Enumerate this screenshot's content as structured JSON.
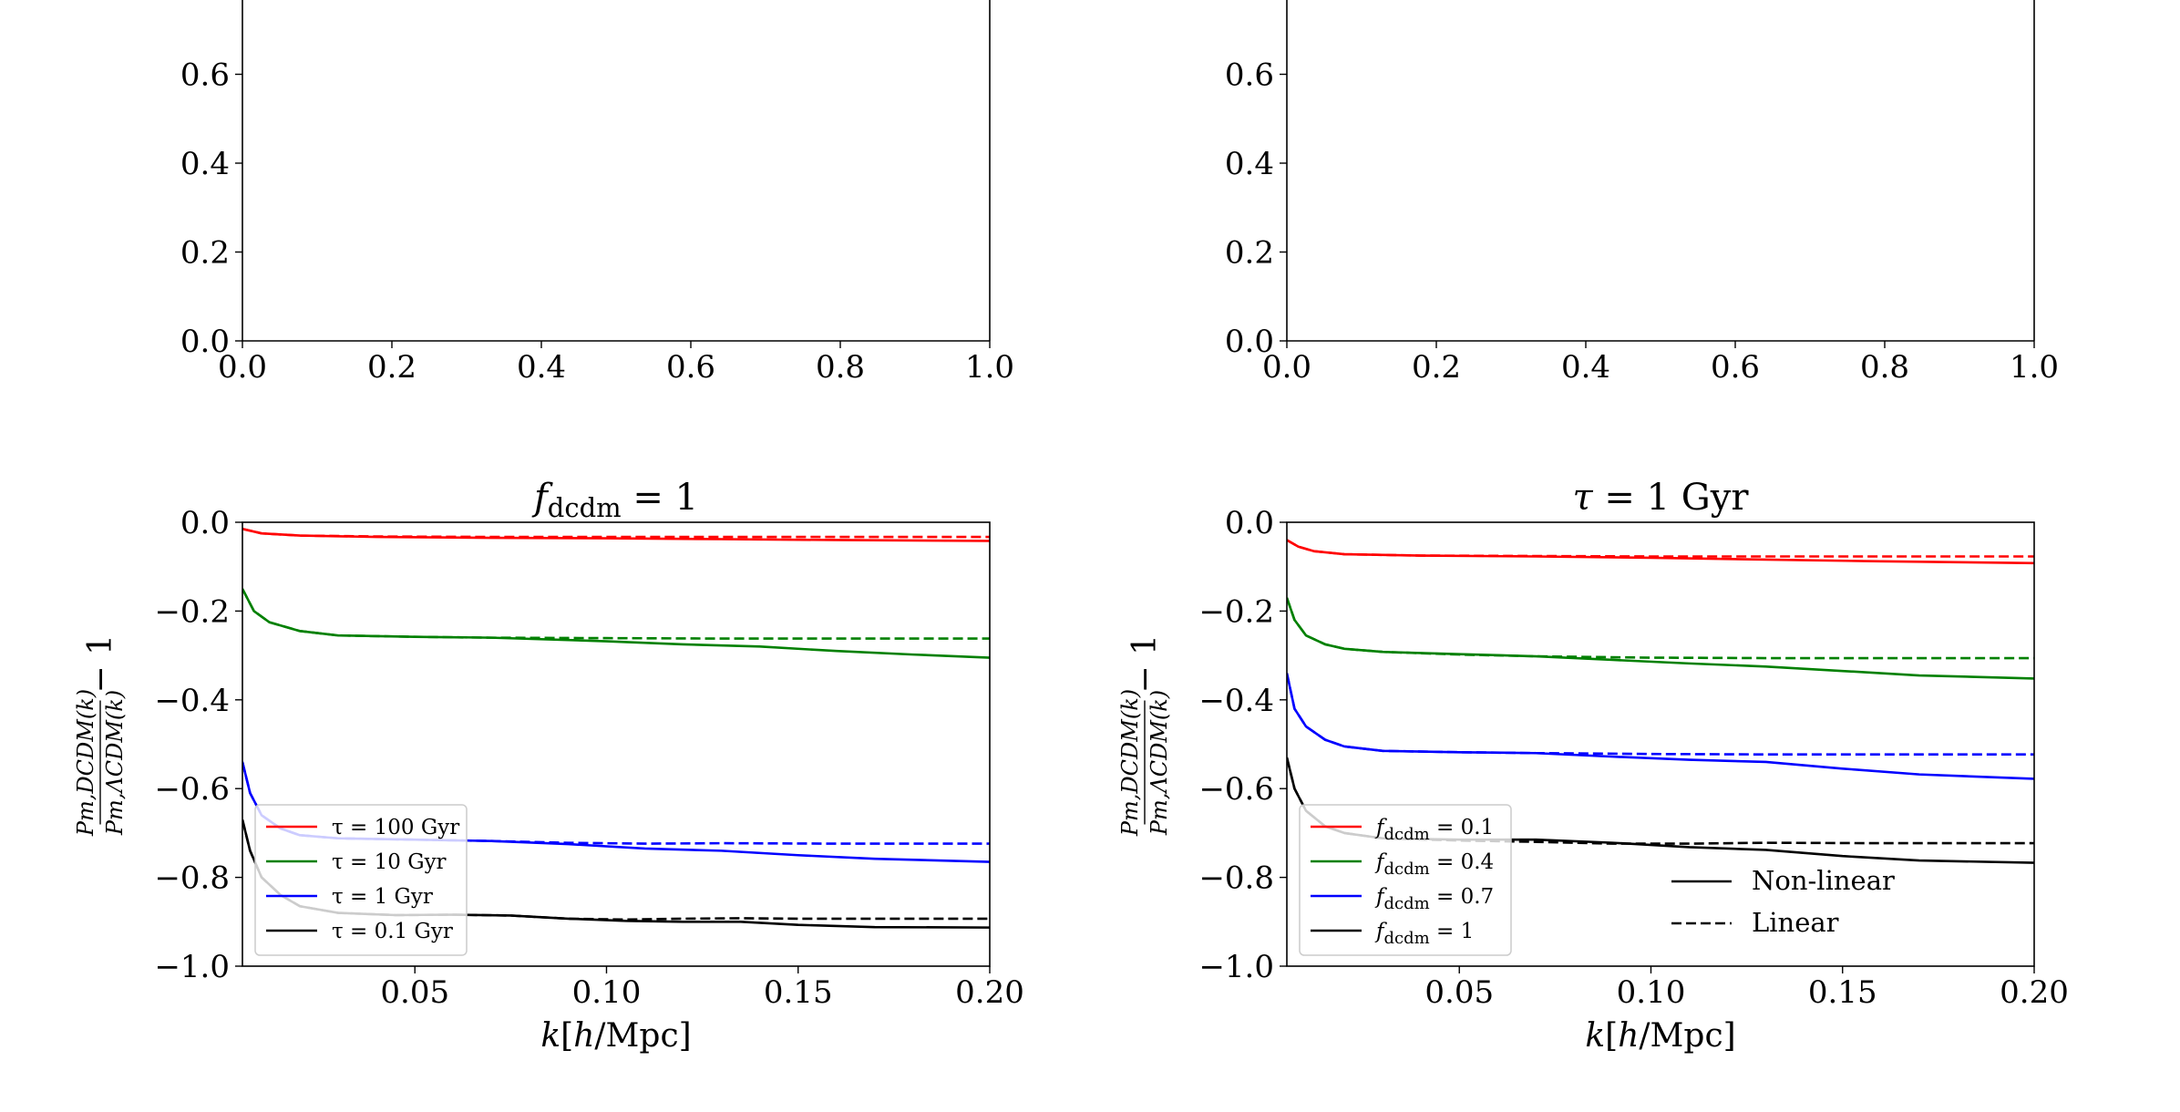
{
  "chart_data": [
    {
      "type": "line",
      "panel": "top-left",
      "title": "",
      "xlabel": "",
      "ylabel": "",
      "xlim": [
        0,
        1
      ],
      "ylim": [
        0,
        0.8
      ],
      "xticks": [
        0.0,
        0.2,
        0.4,
        0.6,
        0.8,
        1.0
      ],
      "xtick_labels": [
        "0.0",
        "0.2",
        "0.4",
        "0.6",
        "0.8",
        "1.0"
      ],
      "yticks": [
        0.0,
        0.2,
        0.4,
        0.6
      ],
      "ytick_labels": [
        "0.0",
        "0.2",
        "0.4",
        "0.6"
      ],
      "series": []
    },
    {
      "type": "line",
      "panel": "top-right",
      "title": "",
      "xlabel": "",
      "ylabel": "",
      "xlim": [
        0,
        1
      ],
      "ylim": [
        0,
        0.8
      ],
      "xticks": [
        0.0,
        0.2,
        0.4,
        0.6,
        0.8,
        1.0
      ],
      "xtick_labels": [
        "0.0",
        "0.2",
        "0.4",
        "0.6",
        "0.8",
        "1.0"
      ],
      "yticks": [
        0.0,
        0.2,
        0.4,
        0.6
      ],
      "ytick_labels": [
        "0.0",
        "0.2",
        "0.4",
        "0.6"
      ],
      "series": []
    },
    {
      "type": "line",
      "panel": "bottom-left",
      "title": {
        "italic": "f",
        "sub": "dcdm",
        "rest": " = 1"
      },
      "xlabel": {
        "italic_k": "k",
        "bracket_open": "[",
        "italic_h": "h",
        "rest": "/Mpc]"
      },
      "ylabel": {
        "num": "P_m,DCDM(k)",
        "den": "P_m,ΛCDM(k)",
        "rest": "− 1"
      },
      "xlim": [
        0.005,
        0.2
      ],
      "ylim": [
        -1.0,
        0.0
      ],
      "xticks": [
        0.05,
        0.1,
        0.15,
        0.2
      ],
      "xtick_labels": [
        "0.05",
        "0.10",
        "0.15",
        "0.20"
      ],
      "yticks": [
        0.0,
        -0.2,
        -0.4,
        -0.6,
        -0.8,
        -1.0
      ],
      "ytick_labels": [
        "0.0",
        "−0.2",
        "−0.4",
        "−0.6",
        "−0.8",
        "−1.0"
      ],
      "legend": {
        "position": "lower-left",
        "entries": [
          {
            "label": "τ = 100 Gyr",
            "color": "#ff0000"
          },
          {
            "label": "τ = 10 Gyr",
            "color": "#008000"
          },
          {
            "label": "τ = 1 Gyr",
            "color": "#0000ff"
          },
          {
            "label": "τ = 0.1 Gyr",
            "color": "#000000"
          }
        ]
      },
      "series": [
        {
          "name": "τ = 100 Gyr non-linear",
          "color": "#ff0000",
          "style": "solid",
          "x": [
            0.005,
            0.01,
            0.02,
            0.04,
            0.07,
            0.1,
            0.13,
            0.16,
            0.2
          ],
          "y": [
            -0.015,
            -0.025,
            -0.03,
            -0.033,
            -0.035,
            -0.036,
            -0.038,
            -0.04,
            -0.042
          ]
        },
        {
          "name": "τ = 100 Gyr linear",
          "color": "#ff0000",
          "style": "dashed",
          "x": [
            0.005,
            0.01,
            0.02,
            0.04,
            0.07,
            0.1,
            0.13,
            0.16,
            0.2
          ],
          "y": [
            -0.015,
            -0.025,
            -0.03,
            -0.032,
            -0.033,
            -0.033,
            -0.033,
            -0.033,
            -0.033
          ]
        },
        {
          "name": "τ = 10 Gyr non-linear",
          "color": "#008000",
          "style": "solid",
          "x": [
            0.005,
            0.008,
            0.012,
            0.02,
            0.03,
            0.05,
            0.07,
            0.1,
            0.12,
            0.14,
            0.16,
            0.18,
            0.2
          ],
          "y": [
            -0.15,
            -0.2,
            -0.225,
            -0.245,
            -0.255,
            -0.258,
            -0.26,
            -0.268,
            -0.275,
            -0.28,
            -0.29,
            -0.298,
            -0.305
          ]
        },
        {
          "name": "τ = 10 Gyr linear",
          "color": "#008000",
          "style": "dashed",
          "x": [
            0.005,
            0.008,
            0.012,
            0.02,
            0.03,
            0.05,
            0.07,
            0.1,
            0.13,
            0.16,
            0.2
          ],
          "y": [
            -0.15,
            -0.2,
            -0.225,
            -0.245,
            -0.255,
            -0.258,
            -0.26,
            -0.261,
            -0.262,
            -0.262,
            -0.262
          ]
        },
        {
          "name": "τ = 1 Gyr non-linear",
          "color": "#0000ff",
          "style": "solid",
          "x": [
            0.005,
            0.007,
            0.01,
            0.015,
            0.02,
            0.03,
            0.05,
            0.07,
            0.09,
            0.11,
            0.13,
            0.15,
            0.17,
            0.2
          ],
          "y": [
            -0.54,
            -0.61,
            -0.66,
            -0.69,
            -0.705,
            -0.712,
            -0.715,
            -0.718,
            -0.725,
            -0.735,
            -0.74,
            -0.75,
            -0.758,
            -0.765
          ]
        },
        {
          "name": "τ = 1 Gyr linear",
          "color": "#0000ff",
          "style": "dashed",
          "x": [
            0.005,
            0.007,
            0.01,
            0.015,
            0.02,
            0.03,
            0.05,
            0.07,
            0.09,
            0.11,
            0.13,
            0.16,
            0.2
          ],
          "y": [
            -0.54,
            -0.61,
            -0.66,
            -0.69,
            -0.705,
            -0.712,
            -0.715,
            -0.718,
            -0.722,
            -0.724,
            -0.723,
            -0.724,
            -0.724
          ]
        },
        {
          "name": "τ = 0.1 Gyr non-linear",
          "color": "#000000",
          "style": "solid",
          "x": [
            0.005,
            0.007,
            0.01,
            0.015,
            0.02,
            0.03,
            0.045,
            0.06,
            0.075,
            0.09,
            0.105,
            0.12,
            0.135,
            0.15,
            0.17,
            0.2
          ],
          "y": [
            -0.67,
            -0.74,
            -0.8,
            -0.84,
            -0.865,
            -0.88,
            -0.885,
            -0.884,
            -0.886,
            -0.893,
            -0.898,
            -0.9,
            -0.9,
            -0.907,
            -0.912,
            -0.913
          ]
        },
        {
          "name": "τ = 0.1 Gyr linear",
          "color": "#000000",
          "style": "dashed",
          "x": [
            0.005,
            0.007,
            0.01,
            0.015,
            0.02,
            0.03,
            0.045,
            0.06,
            0.075,
            0.09,
            0.105,
            0.12,
            0.135,
            0.15,
            0.17,
            0.2
          ],
          "y": [
            -0.67,
            -0.74,
            -0.8,
            -0.84,
            -0.865,
            -0.88,
            -0.885,
            -0.884,
            -0.886,
            -0.893,
            -0.895,
            -0.893,
            -0.892,
            -0.893,
            -0.893,
            -0.893
          ]
        }
      ]
    },
    {
      "type": "line",
      "panel": "bottom-right",
      "title": {
        "italic": "τ",
        "rest": " = 1 Gyr"
      },
      "xlabel": {
        "italic_k": "k",
        "bracket_open": "[",
        "italic_h": "h",
        "rest": "/Mpc]"
      },
      "ylabel": {
        "num": "P_m,DCDM(k)",
        "den": "P_m,ΛCDM(k)",
        "rest": "− 1"
      },
      "xlim": [
        0.005,
        0.2
      ],
      "ylim": [
        -1.0,
        0.0
      ],
      "xticks": [
        0.05,
        0.1,
        0.15,
        0.2
      ],
      "xtick_labels": [
        "0.05",
        "0.10",
        "0.15",
        "0.20"
      ],
      "yticks": [
        0.0,
        -0.2,
        -0.4,
        -0.6,
        -0.8,
        -1.0
      ],
      "ytick_labels": [
        "0.0",
        "−0.2",
        "−0.4",
        "−0.6",
        "−0.8",
        "−1.0"
      ],
      "legend": {
        "position": "lower-left",
        "entries": [
          {
            "label_italic": "f",
            "label_sub": "dcdm",
            "label_rest": " = 0.1",
            "color": "#ff0000"
          },
          {
            "label_italic": "f",
            "label_sub": "dcdm",
            "label_rest": " = 0.4",
            "color": "#008000"
          },
          {
            "label_italic": "f",
            "label_sub": "dcdm",
            "label_rest": " = 0.7",
            "color": "#0000ff"
          },
          {
            "label_italic": "f",
            "label_sub": "dcdm",
            "label_rest": " = 1",
            "color": "#000000"
          }
        ]
      },
      "style_legend": {
        "position": "lower-center",
        "entries": [
          {
            "label": "Non-linear",
            "style": "solid",
            "color": "#000000"
          },
          {
            "label": "Linear",
            "style": "dashed",
            "color": "#000000"
          }
        ]
      },
      "series": [
        {
          "name": "fdcdm = 0.1 non-linear",
          "color": "#ff0000",
          "style": "solid",
          "x": [
            0.005,
            0.008,
            0.012,
            0.02,
            0.04,
            0.07,
            0.1,
            0.13,
            0.16,
            0.2
          ],
          "y": [
            -0.04,
            -0.055,
            -0.065,
            -0.072,
            -0.075,
            -0.077,
            -0.08,
            -0.084,
            -0.088,
            -0.092
          ]
        },
        {
          "name": "fdcdm = 0.1 linear",
          "color": "#ff0000",
          "style": "dashed",
          "x": [
            0.005,
            0.008,
            0.012,
            0.02,
            0.04,
            0.07,
            0.1,
            0.13,
            0.16,
            0.2
          ],
          "y": [
            -0.04,
            -0.055,
            -0.065,
            -0.072,
            -0.075,
            -0.076,
            -0.077,
            -0.077,
            -0.077,
            -0.077
          ]
        },
        {
          "name": "fdcdm = 0.4 non-linear",
          "color": "#008000",
          "style": "solid",
          "x": [
            0.005,
            0.007,
            0.01,
            0.015,
            0.02,
            0.03,
            0.05,
            0.07,
            0.09,
            0.11,
            0.13,
            0.15,
            0.17,
            0.2
          ],
          "y": [
            -0.17,
            -0.22,
            -0.255,
            -0.275,
            -0.285,
            -0.292,
            -0.297,
            -0.302,
            -0.31,
            -0.318,
            -0.325,
            -0.335,
            -0.345,
            -0.352
          ]
        },
        {
          "name": "fdcdm = 0.4 linear",
          "color": "#008000",
          "style": "dashed",
          "x": [
            0.005,
            0.007,
            0.01,
            0.015,
            0.02,
            0.03,
            0.05,
            0.07,
            0.1,
            0.13,
            0.16,
            0.2
          ],
          "y": [
            -0.17,
            -0.22,
            -0.255,
            -0.275,
            -0.285,
            -0.292,
            -0.298,
            -0.302,
            -0.305,
            -0.306,
            -0.306,
            -0.306
          ]
        },
        {
          "name": "fdcdm = 0.7 non-linear",
          "color": "#0000ff",
          "style": "solid",
          "x": [
            0.005,
            0.007,
            0.01,
            0.015,
            0.02,
            0.03,
            0.05,
            0.07,
            0.09,
            0.11,
            0.13,
            0.15,
            0.17,
            0.2
          ],
          "y": [
            -0.34,
            -0.42,
            -0.46,
            -0.49,
            -0.505,
            -0.515,
            -0.518,
            -0.52,
            -0.528,
            -0.535,
            -0.54,
            -0.555,
            -0.568,
            -0.578
          ]
        },
        {
          "name": "fdcdm = 0.7 linear",
          "color": "#0000ff",
          "style": "dashed",
          "x": [
            0.005,
            0.007,
            0.01,
            0.015,
            0.02,
            0.03,
            0.05,
            0.07,
            0.1,
            0.13,
            0.16,
            0.2
          ],
          "y": [
            -0.34,
            -0.42,
            -0.46,
            -0.49,
            -0.505,
            -0.515,
            -0.518,
            -0.52,
            -0.522,
            -0.523,
            -0.523,
            -0.523
          ]
        },
        {
          "name": "fdcdm = 1 non-linear",
          "color": "#000000",
          "style": "solid",
          "x": [
            0.005,
            0.007,
            0.01,
            0.015,
            0.02,
            0.03,
            0.05,
            0.07,
            0.09,
            0.11,
            0.13,
            0.15,
            0.17,
            0.2
          ],
          "y": [
            -0.53,
            -0.6,
            -0.65,
            -0.685,
            -0.7,
            -0.712,
            -0.715,
            -0.715,
            -0.722,
            -0.732,
            -0.738,
            -0.752,
            -0.762,
            -0.767
          ]
        },
        {
          "name": "fdcdm = 1 linear",
          "color": "#000000",
          "style": "dashed",
          "x": [
            0.005,
            0.007,
            0.01,
            0.015,
            0.02,
            0.03,
            0.05,
            0.07,
            0.09,
            0.11,
            0.13,
            0.16,
            0.2
          ],
          "y": [
            -0.53,
            -0.6,
            -0.65,
            -0.685,
            -0.7,
            -0.712,
            -0.717,
            -0.72,
            -0.724,
            -0.724,
            -0.722,
            -0.723,
            -0.723
          ]
        }
      ]
    }
  ]
}
